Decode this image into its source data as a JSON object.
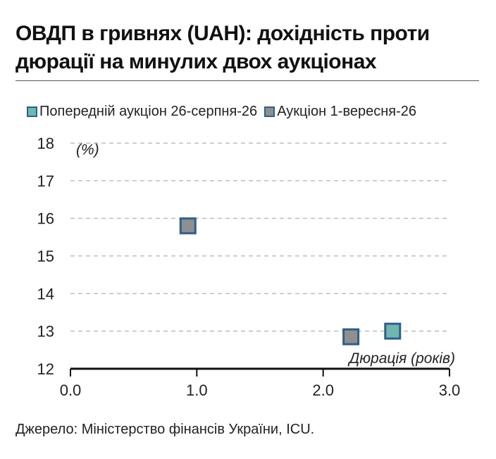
{
  "title": "ОВДП в гривнях (UAH): дохідність проти дюрації на минулих двох аукціонах",
  "source": "Джерело: Міністерство фінансів України, ICU.",
  "colors": {
    "series_prev": "#6fb8b0",
    "series_curr": "#8f8f8f",
    "marker_border": "#2e5f8a",
    "grid": "#bdbdbd",
    "axis": "#111111"
  },
  "chart_data": {
    "type": "scatter",
    "xlabel": "Дюрація (років)",
    "ylabel": "(%)",
    "xlim": [
      0.0,
      3.0
    ],
    "ylim": [
      12,
      18
    ],
    "x_ticks": [
      "0.0",
      "1.0",
      "2.0",
      "3.0"
    ],
    "y_ticks": [
      "12",
      "13",
      "14",
      "15",
      "16",
      "17",
      "18"
    ],
    "grid": true,
    "legend_position": "top",
    "series": [
      {
        "name": "Попередній аукціон 26-серпня-26",
        "color": "#6fb8b0",
        "points": [
          {
            "x": 2.55,
            "y": 13.0
          }
        ]
      },
      {
        "name": "Аукціон 1-вересня-26",
        "color": "#8f8f8f",
        "points": [
          {
            "x": 0.93,
            "y": 15.8
          },
          {
            "x": 2.22,
            "y": 12.85
          }
        ]
      }
    ]
  }
}
